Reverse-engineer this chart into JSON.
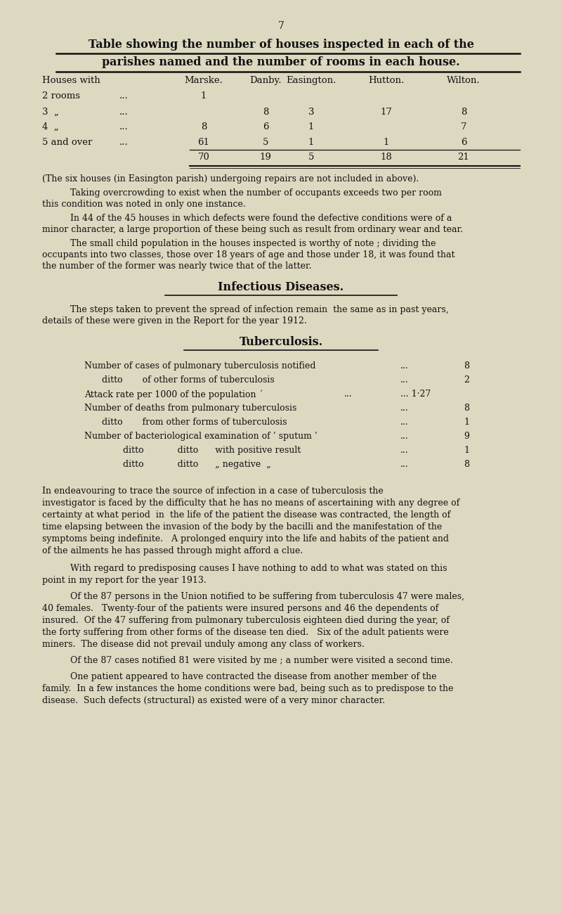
{
  "bg_color": "#ddd8c0",
  "text_color": "#1a1a1a",
  "page_number": "7",
  "title_line1": "Table showing the number of houses inspected in each of the",
  "title_line2": "parishes named and the number of rooms in each house.",
  "col_headers": [
    "Houses with",
    "Marske.",
    "Danby.",
    "Easington.",
    "Hutton.",
    "Wilton."
  ],
  "row_labels": [
    "2 rooms",
    "3  „",
    "4  „",
    "5 and over"
  ],
  "row_dots": [
    "...",
    "...",
    "...",
    "..."
  ],
  "marske": [
    "1",
    "",
    "8",
    "61"
  ],
  "danby": [
    "",
    "8",
    "6",
    "5"
  ],
  "easington": [
    "",
    "3",
    "1",
    "1"
  ],
  "hutton": [
    "",
    "17",
    "",
    "1"
  ],
  "wilton": [
    "",
    "8",
    "7",
    "6"
  ],
  "totals": [
    "70",
    "19",
    "5",
    "18",
    "21"
  ],
  "para1": "(The six houses (in Easington parish) undergoing repairs are not included in above).",
  "para2_indent": "Taking overcrowding to exist when the number of occupants exceeds two per room",
  "para2_cont": "this condition was noted in only one instance.",
  "para3_indent": "In 44 of the 45 houses in which defects were found the defective conditions were of a",
  "para3_cont": "minor character, a large proportion of these being such as result from ordinary wear and tear.",
  "para4_indent": "The small child population in the houses inspected is worthy of note ; dividing the",
  "para4_cont1": "occupants into two classes, those over 18 years of age and those under 18, it was found that",
  "para4_cont2": "the number of the former was nearly twice that of the latter.",
  "sec1_title": "Infectious Diseases.",
  "sec1_p1_indent": "The steps taken to prevent the spread of infection remain  the same as in past years,",
  "sec1_p1_cont": "details of these were given in the Report for the year 1912.",
  "sec2_title": "Tuberculosis.",
  "tb_lines": [
    [
      "Number of cases of pulmonary tuberculosis notified",
      "...",
      "8"
    ],
    [
      "ditto       of other forms of tuberculosis",
      "...",
      "2"
    ],
    [
      "Attack rate per 1000 of the population ´",
      "...",
      "1·27"
    ],
    [
      "Number of deaths from pulmonary tuberculosis",
      "...",
      "8"
    ],
    [
      "ditto       from other forms of tuberculosis",
      "...",
      "1"
    ],
    [
      "Number of bacteriological examination of ‘ sputum ’",
      "...",
      "9"
    ],
    [
      "ditto            ditto      with positive result",
      "...",
      "1"
    ],
    [
      "ditto            ditto      „ negative  „",
      "...",
      "8"
    ]
  ],
  "tb_ditto_indent": 0.16,
  "tb_ditto2_indent": 0.2,
  "para5_lines": [
    "In endeavouring to trace the source of infection in a case of tuberculosis the",
    "investigator is faced by the difficulty that he has no means of ascertaining with any degree of",
    "certainty at what period  in  the life of the patient the disease was contracted, the length of",
    "time elapsing between the invasion of the body by the bacilli and the manifestation of the",
    "symptoms being indefinite.   A prolonged enquiry into the life and habits of the patient and",
    "of the ailments he has passed through might afford a clue."
  ],
  "para6_lines": [
    "With regard to predisposing causes I have nothing to add to what was stated on this",
    "point in my report for the year 1913."
  ],
  "para7_lines": [
    "Of the 87 persons in the Union notified to be suffering from tuberculosis 47 were males,",
    "40 females.   Twenty-four of the patients were insured persons and 46 the dependents of",
    "insured.  Of the 47 suffering from pulmonary tuberculosis eighteen died during the year, of",
    "the forty suffering from other forms of the disease ten died.   Six of the adult patients were",
    "miners.  The disease did not prevail unduly among any class of workers."
  ],
  "para8": "Of the 87 cases notified 81 were visited by me ; a number were visited a second time.",
  "para9_lines": [
    "One patient appeared to have contracted the disease from another member of the",
    "family.  In a few instances the home conditions were bad, being such as to predispose to the",
    "disease.  Such defects (structural) as existed were of a very minor character."
  ]
}
